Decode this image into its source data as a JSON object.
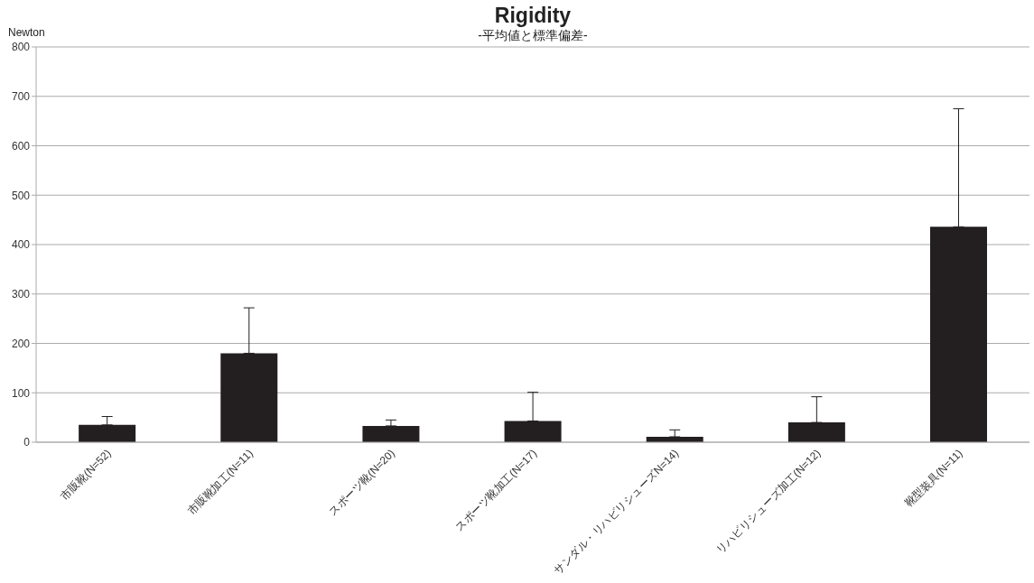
{
  "chart_data": {
    "type": "bar",
    "title": "Rigidity",
    "subtitle": "-平均値と標準偏差-",
    "ylabel": "Newton",
    "categories": [
      "市販靴(N=52)",
      "市販靴加工(N=11)",
      "スポーツ靴(N=20)",
      "スポーツ靴加工(N=17)",
      "サンダル・リハビリシューズN=14)",
      "リハビリシューズ加工(N=12)",
      "靴型装具(N=11)"
    ],
    "values": [
      35,
      180,
      33,
      43,
      11,
      40,
      436
    ],
    "errors": [
      [
        35,
        52
      ],
      [
        180,
        272
      ],
      [
        33,
        45
      ],
      [
        43,
        101
      ],
      [
        11,
        25
      ],
      [
        40,
        92
      ],
      [
        436,
        675
      ]
    ],
    "color": "#231f20",
    "ylim": [
      0,
      800
    ],
    "yticks": [
      0,
      100,
      200,
      300,
      400,
      500,
      600,
      700,
      800
    ],
    "grid": "y"
  }
}
